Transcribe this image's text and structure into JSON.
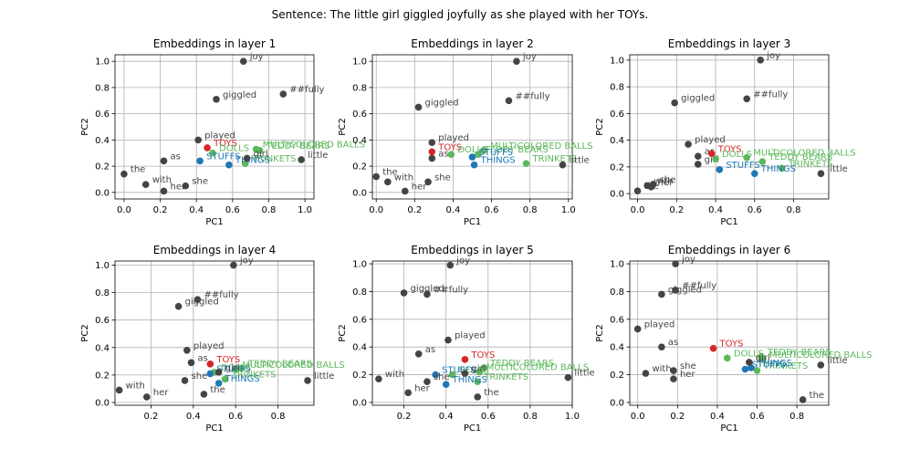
{
  "figure_title": "Sentence: The little girl giggled joyfully as she played with her TOYs.",
  "colors": {
    "regular": "#444444",
    "target": "#d62728",
    "positive": "#5cb85c",
    "negative": "#1f77b4"
  },
  "chart_data": [
    {
      "type": "scatter",
      "title": "Embeddings in layer 1",
      "xlabel": "PC1",
      "ylabel": "PC2",
      "xlim": [
        -0.05,
        1.05
      ],
      "ylim": [
        -0.05,
        1.05
      ],
      "xticks": [
        "0.0",
        "0.2",
        "0.4",
        "0.6",
        "0.8",
        "1.0"
      ],
      "yticks": [
        "0.0",
        "0.2",
        "0.4",
        "0.6",
        "0.8",
        "1.0"
      ],
      "grid": true,
      "points": [
        {
          "label": "joy",
          "x": 0.66,
          "y": 1.0,
          "group": "regular"
        },
        {
          "label": "##fully",
          "x": 0.88,
          "y": 0.75,
          "group": "regular"
        },
        {
          "label": "giggled",
          "x": 0.51,
          "y": 0.71,
          "group": "regular"
        },
        {
          "label": "played",
          "x": 0.41,
          "y": 0.4,
          "group": "regular"
        },
        {
          "label": "TOYS",
          "x": 0.46,
          "y": 0.34,
          "group": "target"
        },
        {
          "label": "DOLLS",
          "x": 0.49,
          "y": 0.3,
          "group": "positive"
        },
        {
          "label": "MULTICOLORED BALLS",
          "x": 0.73,
          "y": 0.33,
          "group": "positive"
        },
        {
          "label": "TEDDY BEARS",
          "x": 0.75,
          "y": 0.32,
          "group": "positive"
        },
        {
          "label": "TRINKETS",
          "x": 0.67,
          "y": 0.22,
          "group": "positive"
        },
        {
          "label": "STUFFS",
          "x": 0.42,
          "y": 0.24,
          "group": "negative"
        },
        {
          "label": "THINGS",
          "x": 0.58,
          "y": 0.21,
          "group": "negative"
        },
        {
          "label": "girl",
          "x": 0.68,
          "y": 0.26,
          "group": "regular"
        },
        {
          "label": "little",
          "x": 0.98,
          "y": 0.25,
          "group": "regular"
        },
        {
          "label": "as",
          "x": 0.22,
          "y": 0.24,
          "group": "regular"
        },
        {
          "label": "the",
          "x": 0.0,
          "y": 0.14,
          "group": "regular"
        },
        {
          "label": "with",
          "x": 0.12,
          "y": 0.06,
          "group": "regular"
        },
        {
          "label": "her",
          "x": 0.22,
          "y": 0.01,
          "group": "regular"
        },
        {
          "label": "she",
          "x": 0.34,
          "y": 0.05,
          "group": "regular"
        }
      ]
    },
    {
      "type": "scatter",
      "title": "Embeddings in layer 2",
      "xlabel": "PC1",
      "ylabel": "PC2",
      "xlim": [
        -0.02,
        1.02
      ],
      "ylim": [
        -0.05,
        1.05
      ],
      "xticks": [
        "0.0",
        "0.2",
        "0.4",
        "0.6",
        "0.8",
        "1.0"
      ],
      "yticks": [
        "0.0",
        "0.2",
        "0.4",
        "0.6",
        "0.8",
        "1.0"
      ],
      "grid": true,
      "points": [
        {
          "label": "joy",
          "x": 0.73,
          "y": 1.0,
          "group": "regular"
        },
        {
          "label": "##fully",
          "x": 0.69,
          "y": 0.7,
          "group": "regular"
        },
        {
          "label": "giggled",
          "x": 0.22,
          "y": 0.65,
          "group": "regular"
        },
        {
          "label": "played",
          "x": 0.29,
          "y": 0.38,
          "group": "regular"
        },
        {
          "label": "TOYS",
          "x": 0.29,
          "y": 0.31,
          "group": "target"
        },
        {
          "label": "as",
          "x": 0.29,
          "y": 0.26,
          "group": "regular"
        },
        {
          "label": "DOLLS",
          "x": 0.39,
          "y": 0.29,
          "group": "positive"
        },
        {
          "label": "TEDDY BEARS",
          "x": 0.53,
          "y": 0.29,
          "group": "positive"
        },
        {
          "label": "MULTICOLORED BALLS",
          "x": 0.56,
          "y": 0.32,
          "group": "positive"
        },
        {
          "label": "TRINKETS",
          "x": 0.78,
          "y": 0.22,
          "group": "positive"
        },
        {
          "label": "STUFFS",
          "x": 0.5,
          "y": 0.27,
          "group": "negative"
        },
        {
          "label": "THINGS",
          "x": 0.51,
          "y": 0.21,
          "group": "negative"
        },
        {
          "label": "little",
          "x": 0.97,
          "y": 0.21,
          "group": "regular"
        },
        {
          "label": "the",
          "x": 0.0,
          "y": 0.12,
          "group": "regular"
        },
        {
          "label": "with",
          "x": 0.06,
          "y": 0.08,
          "group": "regular"
        },
        {
          "label": "her",
          "x": 0.15,
          "y": 0.01,
          "group": "regular"
        },
        {
          "label": "she",
          "x": 0.27,
          "y": 0.08,
          "group": "regular"
        }
      ]
    },
    {
      "type": "scatter",
      "title": "Embeddings in layer 3",
      "xlabel": "PC1",
      "ylabel": "PC2",
      "xlim": [
        -0.04,
        0.98
      ],
      "ylim": [
        -0.04,
        1.04
      ],
      "xticks": [
        "0.0",
        "0.2",
        "0.4",
        "0.6",
        "0.8"
      ],
      "yticks": [
        "0.0",
        "0.2",
        "0.4",
        "0.6",
        "0.8",
        "1.0"
      ],
      "grid": true,
      "points": [
        {
          "label": "joy",
          "x": 0.63,
          "y": 1.0,
          "group": "regular"
        },
        {
          "label": "##fully",
          "x": 0.56,
          "y": 0.71,
          "group": "regular"
        },
        {
          "label": "giggled",
          "x": 0.19,
          "y": 0.68,
          "group": "regular"
        },
        {
          "label": "played",
          "x": 0.26,
          "y": 0.37,
          "group": "regular"
        },
        {
          "label": "as",
          "x": 0.31,
          "y": 0.28,
          "group": "regular"
        },
        {
          "label": "girl",
          "x": 0.31,
          "y": 0.22,
          "group": "regular"
        },
        {
          "label": "TOYS",
          "x": 0.38,
          "y": 0.3,
          "group": "target"
        },
        {
          "label": "DOLLS",
          "x": 0.4,
          "y": 0.26,
          "group": "positive"
        },
        {
          "label": "MULTICOLORED BALLS",
          "x": 0.56,
          "y": 0.27,
          "group": "positive"
        },
        {
          "label": "TEDDY BEARS",
          "x": 0.64,
          "y": 0.24,
          "group": "positive"
        },
        {
          "label": "TRINKETS",
          "x": 0.74,
          "y": 0.19,
          "group": "positive"
        },
        {
          "label": "STUFFS",
          "x": 0.42,
          "y": 0.18,
          "group": "negative"
        },
        {
          "label": "THINGS",
          "x": 0.6,
          "y": 0.15,
          "group": "negative"
        },
        {
          "label": "little",
          "x": 0.94,
          "y": 0.15,
          "group": "regular"
        },
        {
          "label": "she",
          "x": 0.08,
          "y": 0.07,
          "group": "regular"
        },
        {
          "label": "the",
          "x": 0.0,
          "y": 0.02,
          "group": "regular"
        },
        {
          "label": "with",
          "x": 0.05,
          "y": 0.06,
          "group": "regular"
        },
        {
          "label": "her",
          "x": 0.07,
          "y": 0.05,
          "group": "regular"
        }
      ]
    },
    {
      "type": "scatter",
      "title": "Embeddings in layer 4",
      "xlabel": "PC1",
      "ylabel": "PC2",
      "xlim": [
        0.03,
        0.97
      ],
      "ylim": [
        -0.02,
        1.03
      ],
      "xticks": [
        "0.2",
        "0.4",
        "0.6",
        "0.8"
      ],
      "yticks": [
        "0.0",
        "0.2",
        "0.4",
        "0.6",
        "0.8",
        "1.0"
      ],
      "grid": true,
      "points": [
        {
          "label": "joy",
          "x": 0.59,
          "y": 1.0,
          "group": "regular"
        },
        {
          "label": "##fully",
          "x": 0.42,
          "y": 0.75,
          "group": "regular"
        },
        {
          "label": "giggled",
          "x": 0.33,
          "y": 0.7,
          "group": "regular"
        },
        {
          "label": "played",
          "x": 0.37,
          "y": 0.38,
          "group": "regular"
        },
        {
          "label": "as",
          "x": 0.39,
          "y": 0.29,
          "group": "regular"
        },
        {
          "label": "TOYS",
          "x": 0.48,
          "y": 0.28,
          "group": "target"
        },
        {
          "label": "MULTICOLORED BALLS",
          "x": 0.6,
          "y": 0.24,
          "group": "positive"
        },
        {
          "label": "TEDDY BEARS",
          "x": 0.63,
          "y": 0.25,
          "group": "positive"
        },
        {
          "label": "DOLLS",
          "x": 0.5,
          "y": 0.22,
          "group": "positive"
        },
        {
          "label": "TRINKETS",
          "x": 0.55,
          "y": 0.17,
          "group": "positive"
        },
        {
          "label": "STUFFS",
          "x": 0.48,
          "y": 0.21,
          "group": "negative"
        },
        {
          "label": "THINGS",
          "x": 0.52,
          "y": 0.14,
          "group": "negative"
        },
        {
          "label": "girl",
          "x": 0.52,
          "y": 0.22,
          "group": "regular"
        },
        {
          "label": "she",
          "x": 0.36,
          "y": 0.16,
          "group": "regular"
        },
        {
          "label": "little",
          "x": 0.94,
          "y": 0.16,
          "group": "regular"
        },
        {
          "label": "with",
          "x": 0.05,
          "y": 0.09,
          "group": "regular"
        },
        {
          "label": "her",
          "x": 0.18,
          "y": 0.04,
          "group": "regular"
        },
        {
          "label": "the",
          "x": 0.45,
          "y": 0.06,
          "group": "regular"
        }
      ]
    },
    {
      "type": "scatter",
      "title": "Embeddings in layer 5",
      "xlabel": "PC1",
      "ylabel": "PC2",
      "xlim": [
        0.05,
        1.0
      ],
      "ylim": [
        -0.02,
        1.02
      ],
      "xticks": [
        "0.2",
        "0.4",
        "0.6",
        "0.8",
        "1.0"
      ],
      "yticks": [
        "0.0",
        "0.2",
        "0.4",
        "0.6",
        "0.8",
        "1.0"
      ],
      "grid": true,
      "points": [
        {
          "label": "joy",
          "x": 0.42,
          "y": 0.99,
          "group": "regular"
        },
        {
          "label": "##fully",
          "x": 0.31,
          "y": 0.78,
          "group": "regular"
        },
        {
          "label": "giggled",
          "x": 0.2,
          "y": 0.79,
          "group": "regular"
        },
        {
          "label": "played",
          "x": 0.41,
          "y": 0.45,
          "group": "regular"
        },
        {
          "label": "as",
          "x": 0.27,
          "y": 0.35,
          "group": "regular"
        },
        {
          "label": "TOYS",
          "x": 0.49,
          "y": 0.31,
          "group": "target"
        },
        {
          "label": "TEDDY BEARS",
          "x": 0.58,
          "y": 0.25,
          "group": "positive"
        },
        {
          "label": "MULTICOLORED BALLS",
          "x": 0.56,
          "y": 0.22,
          "group": "positive"
        },
        {
          "label": "DOLLS",
          "x": 0.43,
          "y": 0.2,
          "group": "positive"
        },
        {
          "label": "TRINKETS",
          "x": 0.55,
          "y": 0.15,
          "group": "positive"
        },
        {
          "label": "STUFFS",
          "x": 0.35,
          "y": 0.2,
          "group": "negative"
        },
        {
          "label": "THINGS",
          "x": 0.4,
          "y": 0.13,
          "group": "negative"
        },
        {
          "label": "girl",
          "x": 0.49,
          "y": 0.21,
          "group": "regular"
        },
        {
          "label": "she",
          "x": 0.31,
          "y": 0.15,
          "group": "regular"
        },
        {
          "label": "little",
          "x": 0.98,
          "y": 0.18,
          "group": "regular"
        },
        {
          "label": "with",
          "x": 0.08,
          "y": 0.17,
          "group": "regular"
        },
        {
          "label": "her",
          "x": 0.22,
          "y": 0.07,
          "group": "regular"
        },
        {
          "label": "the",
          "x": 0.55,
          "y": 0.04,
          "group": "regular"
        }
      ]
    },
    {
      "type": "scatter",
      "title": "Embeddings in layer 6",
      "xlabel": "PC1",
      "ylabel": "PC2",
      "xlim": [
        -0.04,
        0.96
      ],
      "ylim": [
        -0.02,
        1.02
      ],
      "xticks": [
        "0.0",
        "0.2",
        "0.4",
        "0.6",
        "0.8"
      ],
      "yticks": [
        "0.0",
        "0.2",
        "0.4",
        "0.6",
        "0.8",
        "1.0"
      ],
      "grid": true,
      "points": [
        {
          "label": "joy",
          "x": 0.19,
          "y": 1.0,
          "group": "regular"
        },
        {
          "label": "##fully",
          "x": 0.19,
          "y": 0.81,
          "group": "regular"
        },
        {
          "label": "giggled",
          "x": 0.12,
          "y": 0.78,
          "group": "regular"
        },
        {
          "label": "played",
          "x": 0.0,
          "y": 0.53,
          "group": "regular"
        },
        {
          "label": "as",
          "x": 0.12,
          "y": 0.4,
          "group": "regular"
        },
        {
          "label": "TOYS",
          "x": 0.38,
          "y": 0.39,
          "group": "target"
        },
        {
          "label": "DOLLS",
          "x": 0.45,
          "y": 0.32,
          "group": "positive"
        },
        {
          "label": "TEDDY BEARS",
          "x": 0.62,
          "y": 0.33,
          "group": "positive"
        },
        {
          "label": "MULTICOLORED BALLS",
          "x": 0.63,
          "y": 0.31,
          "group": "positive"
        },
        {
          "label": "TRINKETS",
          "x": 0.6,
          "y": 0.23,
          "group": "positive"
        },
        {
          "label": "STUFFS",
          "x": 0.54,
          "y": 0.24,
          "group": "negative"
        },
        {
          "label": "THINGS",
          "x": 0.57,
          "y": 0.25,
          "group": "negative"
        },
        {
          "label": "girl",
          "x": 0.56,
          "y": 0.29,
          "group": "regular"
        },
        {
          "label": "little",
          "x": 0.92,
          "y": 0.27,
          "group": "regular"
        },
        {
          "label": "with",
          "x": 0.04,
          "y": 0.21,
          "group": "regular"
        },
        {
          "label": "she",
          "x": 0.18,
          "y": 0.23,
          "group": "regular"
        },
        {
          "label": "her",
          "x": 0.18,
          "y": 0.17,
          "group": "regular"
        },
        {
          "label": "the",
          "x": 0.83,
          "y": 0.02,
          "group": "regular"
        }
      ]
    }
  ]
}
